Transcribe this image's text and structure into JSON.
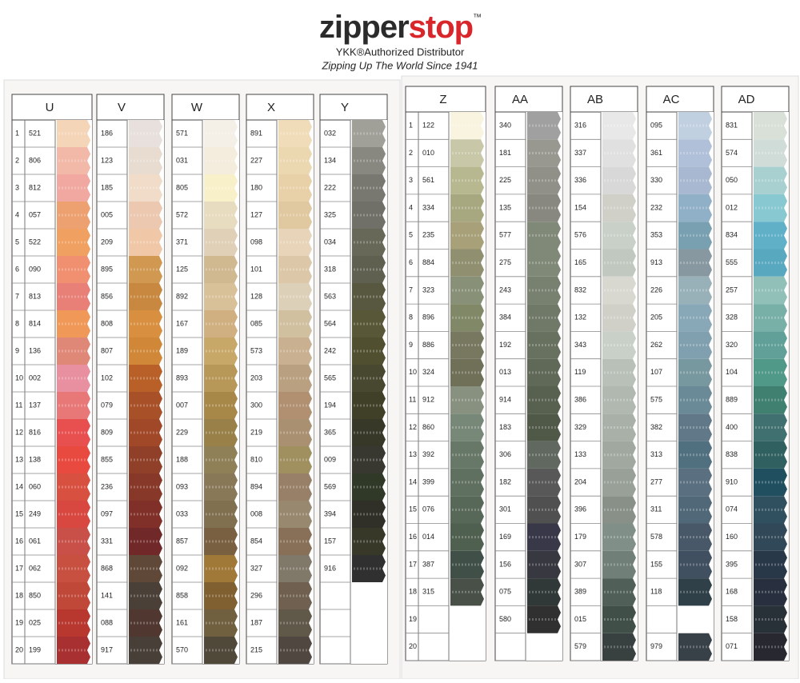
{
  "header": {
    "logo_main": "zipper",
    "logo_accent": "stop",
    "trademark": "™",
    "tagline": "YKK®Authorized Distributor",
    "slogan": "Zipping Up The World Since 1941"
  },
  "panels": [
    {
      "row_numbers": [
        1,
        2,
        3,
        4,
        5,
        6,
        7,
        8,
        9,
        10,
        11,
        12,
        13,
        14,
        15,
        16,
        17,
        18,
        19,
        20
      ],
      "columns": [
        {
          "header": "U",
          "codes": [
            "521",
            "806",
            "812",
            "057",
            "522",
            "090",
            "813",
            "814",
            "136",
            "002",
            "137",
            "816",
            "138",
            "060",
            "249",
            "061",
            "062",
            "850",
            "025",
            "199"
          ]
        },
        {
          "header": "V",
          "codes": [
            "186",
            "123",
            "185",
            "005",
            "209",
            "895",
            "856",
            "808",
            "807",
            "102",
            "079",
            "809",
            "855",
            "236",
            "097",
            "331",
            "868",
            "141",
            "088",
            "917"
          ]
        },
        {
          "header": "W",
          "codes": [
            "571",
            "031",
            "805",
            "572",
            "371",
            "125",
            "892",
            "167",
            "189",
            "893",
            "007",
            "229",
            "188",
            "093",
            "033",
            "857",
            "092",
            "858",
            "161",
            "570"
          ]
        },
        {
          "header": "X",
          "codes": [
            "891",
            "227",
            "180",
            "127",
            "098",
            "101",
            "128",
            "085",
            "573",
            "203",
            "300",
            "219",
            "810",
            "894",
            "008",
            "854",
            "327",
            "296",
            "187",
            "215"
          ]
        },
        {
          "header": "Y",
          "codes": [
            "032",
            "134",
            "222",
            "325",
            "034",
            "318",
            "563",
            "564",
            "242",
            "565",
            "194",
            "365",
            "009",
            "569",
            "394",
            "157",
            "916",
            null,
            null,
            null
          ]
        }
      ]
    },
    {
      "row_numbers": [
        1,
        2,
        3,
        4,
        5,
        6,
        7,
        8,
        9,
        10,
        11,
        12,
        13,
        14,
        15,
        16,
        17,
        18,
        19,
        20
      ],
      "columns": [
        {
          "header": "Z",
          "codes": [
            "122",
            "010",
            "561",
            "334",
            "235",
            "884",
            "323",
            "896",
            "886",
            "324",
            "912",
            "860",
            "392",
            "399",
            "076",
            "014",
            "387",
            "315",
            null,
            null
          ]
        },
        {
          "header": "AA",
          "codes": [
            "340",
            "181",
            "225",
            "135",
            "577",
            "275",
            "243",
            "384",
            "192",
            "013",
            "914",
            "183",
            "306",
            "182",
            "301",
            "169",
            "156",
            "075",
            "580",
            null
          ]
        },
        {
          "header": "AB",
          "codes": [
            "316",
            "337",
            "336",
            "154",
            "576",
            "165",
            "832",
            "132",
            "343",
            "119",
            "386",
            "329",
            "133",
            "204",
            "396",
            "179",
            "307",
            "389",
            "015",
            "579"
          ]
        },
        {
          "header": "AC",
          "codes": [
            "095",
            "361",
            "330",
            "232",
            "353",
            "913",
            "226",
            "205",
            "262",
            "107",
            "575",
            "382",
            "313",
            "277",
            "311",
            "578",
            "155",
            "118",
            null,
            "979"
          ]
        },
        {
          "header": "AD",
          "codes": [
            "831",
            "574",
            "050",
            "012",
            "834",
            "555",
            "257",
            "328",
            "320",
            "104",
            "889",
            "400",
            "838",
            "910",
            "074",
            "160",
            "395",
            "168",
            "158",
            "071"
          ]
        }
      ]
    }
  ]
}
